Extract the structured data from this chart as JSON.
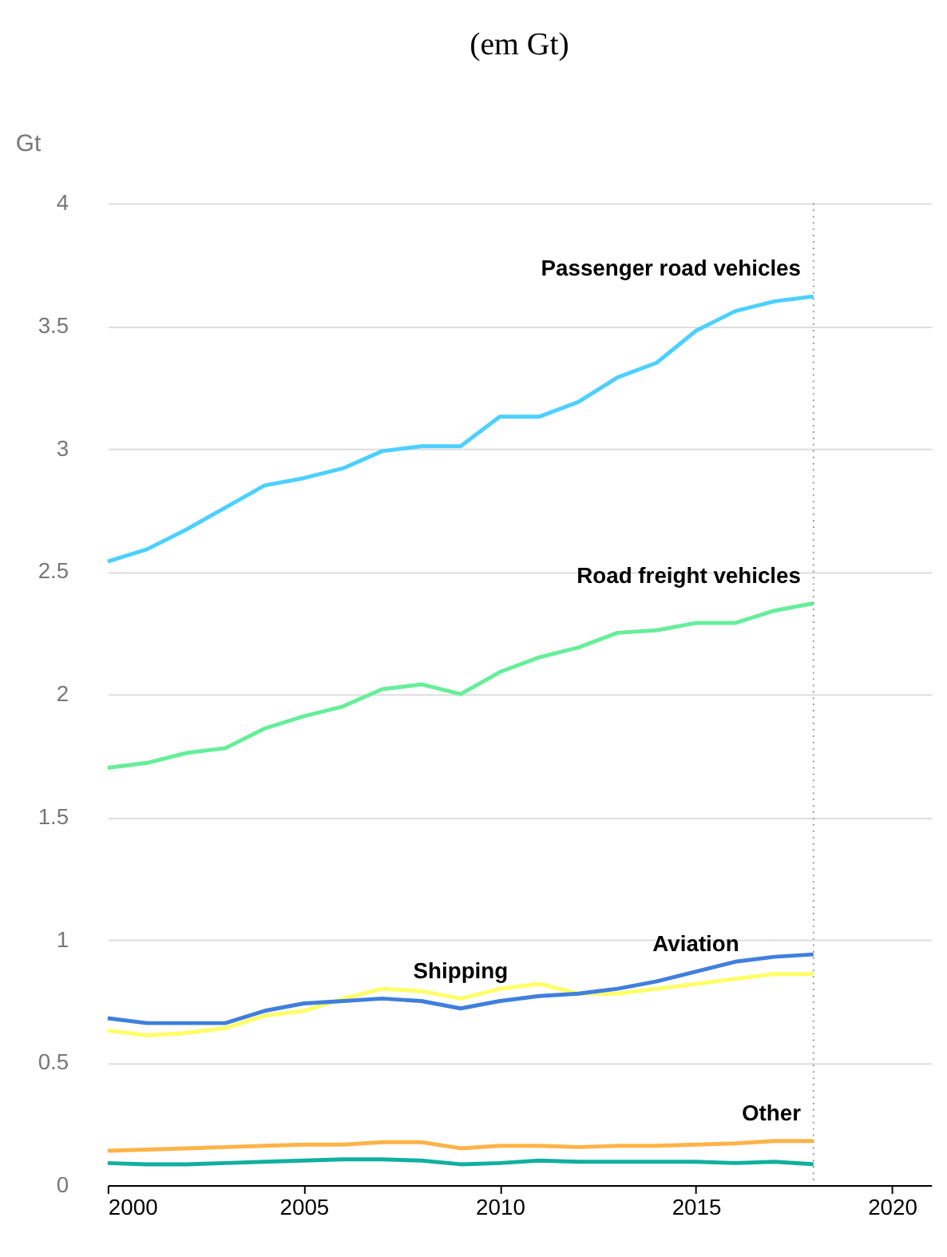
{
  "chart_data": {
    "type": "line",
    "title": "(em Gt)",
    "ylabel": "Gt",
    "x": [
      2000,
      2001,
      2002,
      2003,
      2004,
      2005,
      2006,
      2007,
      2008,
      2009,
      2010,
      2011,
      2012,
      2013,
      2014,
      2015,
      2016,
      2017,
      2018
    ],
    "series": [
      {
        "name": "Passenger road vehicles",
        "color": "#4dd0ff",
        "values": [
          2.54,
          2.59,
          2.67,
          2.76,
          2.85,
          2.88,
          2.92,
          2.99,
          3.01,
          3.01,
          3.13,
          3.13,
          3.19,
          3.29,
          3.35,
          3.48,
          3.56,
          3.6,
          3.62
        ]
      },
      {
        "name": "Road freight vehicles",
        "color": "#66ee99",
        "values": [
          1.7,
          1.72,
          1.76,
          1.78,
          1.86,
          1.91,
          1.95,
          2.02,
          2.04,
          2.0,
          2.09,
          2.15,
          2.19,
          2.25,
          2.26,
          2.29,
          2.29,
          2.34,
          2.37
        ]
      },
      {
        "name": "Shipping",
        "color": "#ffff66",
        "values": [
          0.63,
          0.61,
          0.62,
          0.64,
          0.69,
          0.71,
          0.76,
          0.8,
          0.79,
          0.76,
          0.8,
          0.82,
          0.78,
          0.78,
          0.8,
          0.82,
          0.84,
          0.86,
          0.86
        ]
      },
      {
        "name": "Aviation",
        "color": "#3f7fdd",
        "values": [
          0.68,
          0.66,
          0.66,
          0.66,
          0.71,
          0.74,
          0.75,
          0.76,
          0.75,
          0.72,
          0.75,
          0.77,
          0.78,
          0.8,
          0.83,
          0.87,
          0.91,
          0.93,
          0.94
        ]
      },
      {
        "name": "Other",
        "color": "#ffb347",
        "values": [
          0.14,
          0.145,
          0.15,
          0.155,
          0.16,
          0.165,
          0.165,
          0.175,
          0.175,
          0.15,
          0.16,
          0.16,
          0.155,
          0.16,
          0.16,
          0.165,
          0.17,
          0.18,
          0.18
        ]
      },
      {
        "color": "#10b0a0",
        "values": [
          0.09,
          0.085,
          0.085,
          0.09,
          0.095,
          0.1,
          0.105,
          0.105,
          0.1,
          0.085,
          0.09,
          0.1,
          0.095,
          0.095,
          0.095,
          0.095,
          0.09,
          0.095,
          0.085
        ]
      }
    ],
    "xlim": [
      2000,
      2021
    ],
    "xticks": [
      2000,
      2005,
      2010,
      2015,
      2020
    ],
    "ylim": [
      0,
      4
    ],
    "yticks": [
      0,
      0.5,
      1,
      1.5,
      2,
      2.5,
      3,
      3.5,
      4
    ],
    "grid": "y",
    "marker": "none",
    "line_style": "solid",
    "ref_lines": [
      {
        "axis": "x",
        "value": 2018,
        "color": "#999999",
        "line_style": "dotted"
      }
    ]
  }
}
